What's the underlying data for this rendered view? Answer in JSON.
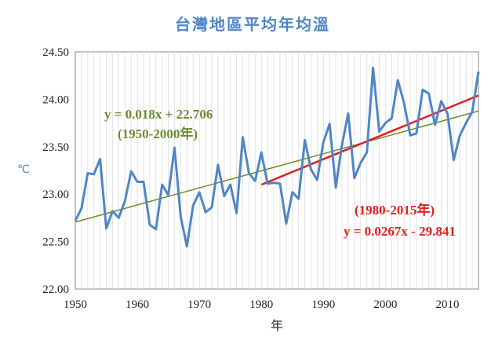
{
  "chart_data": {
    "type": "line",
    "title": "台灣地區平均年均溫",
    "xlabel": "年",
    "ylabel": "℃",
    "xlim": [
      1950,
      2015
    ],
    "ylim": [
      22.0,
      24.5
    ],
    "xticks": [
      "1950",
      "1960",
      "1970",
      "1980",
      "1990",
      "2000",
      "2010"
    ],
    "yticks": [
      "22.00",
      "22.50",
      "23.00",
      "23.50",
      "24.00",
      "24.50"
    ],
    "grid": "vertical minor gridlines",
    "colors": {
      "series": "#4f86c6",
      "trend_long": "#6e8b2f",
      "trend_recent": "#e02020"
    },
    "series": [
      {
        "x": [
          1950,
          1951,
          1952,
          1953,
          1954,
          1955,
          1956,
          1957,
          1958,
          1959,
          1960,
          1961,
          1962,
          1963,
          1964,
          1965,
          1966,
          1967,
          1968,
          1969,
          1970,
          1971,
          1972,
          1973,
          1974,
          1975,
          1976,
          1977,
          1978,
          1979,
          1980,
          1981,
          1982,
          1983,
          1984,
          1985,
          1986,
          1987,
          1988,
          1989,
          1990,
          1991,
          1992,
          1993,
          1994,
          1995,
          1996,
          1997,
          1998,
          1999,
          2000,
          2001,
          2002,
          2003,
          2004,
          2005,
          2006,
          2007,
          2008,
          2009,
          2010,
          2011,
          2012,
          2013,
          2014,
          2015
        ],
        "values": [
          22.72,
          22.85,
          23.22,
          23.21,
          23.37,
          22.64,
          22.82,
          22.75,
          22.93,
          23.24,
          23.13,
          23.13,
          22.68,
          22.63,
          23.1,
          22.99,
          23.49,
          22.76,
          22.45,
          22.88,
          23.02,
          22.81,
          22.86,
          23.31,
          22.98,
          23.1,
          22.8,
          23.6,
          23.22,
          23.14,
          23.44,
          23.11,
          23.12,
          23.11,
          22.69,
          23.02,
          22.95,
          23.57,
          23.26,
          23.15,
          23.55,
          23.74,
          23.07,
          23.52,
          23.85,
          23.17,
          23.33,
          23.44,
          24.33,
          23.66,
          23.75,
          23.8,
          24.2,
          23.96,
          23.62,
          23.64,
          24.1,
          24.06,
          23.73,
          23.98,
          23.85,
          23.36,
          23.62,
          23.75,
          23.87,
          24.29
        ]
      }
    ],
    "trendlines": [
      {
        "equation": "y = 0.018x + 22.706",
        "period": "(1950-2000年)",
        "x_range": [
          1950,
          2015
        ],
        "y_range": [
          22.706,
          23.876
        ]
      },
      {
        "equation": "y = 0.0267x - 29.841",
        "period": "(1980-2015年)",
        "x_range": [
          1980,
          2015
        ],
        "y_range": [
          23.1,
          24.04
        ]
      }
    ]
  }
}
